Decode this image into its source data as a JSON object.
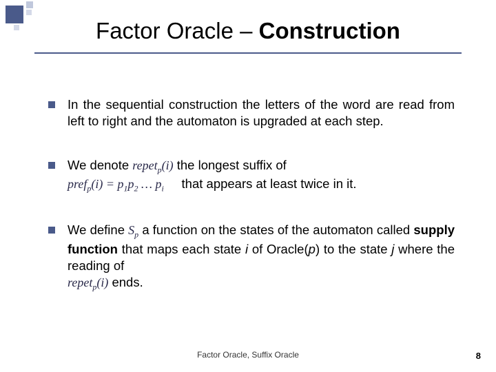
{
  "title": {
    "part1": "Factor Oracle – ",
    "part2": "Construction"
  },
  "bullets": {
    "b1": "In the sequential construction the letters of the word are read from left to right and the automaton is upgraded at each step.",
    "b2": {
      "pre": "We denote ",
      "formula1_base": "repet",
      "formula1_sub": "p",
      "formula1_arg": "(i)",
      "mid1": " the longest suffix of",
      "formula2_base": "pref",
      "formula2_sub": "p",
      "formula2_arg": "(i) = p",
      "formula2_sub2": "1",
      "formula2_mid": "p",
      "formula2_sub3": "2",
      "formula2_dots": " … ",
      "formula2_end": "p",
      "formula2_sub4": "i",
      "post": " that appears at least twice in it."
    },
    "b3": {
      "pre": "We define ",
      "sp_base": "S",
      "sp_sub": "p",
      "mid1": " a function on the states of the automaton called ",
      "supply": "supply function",
      "mid2": " that maps each state ",
      "i": "i",
      "mid3": " of Oracle(",
      "p": "p",
      "mid4": ") to the state ",
      "j": "j",
      "mid5": " where the reading of",
      "formula_base": "repet",
      "formula_sub": "p",
      "formula_arg": "(i)",
      "post": " ends."
    }
  },
  "footer": "Factor Oracle, Suffix Oracle",
  "page": "8",
  "colors": {
    "accent": "#4a5a8a"
  }
}
